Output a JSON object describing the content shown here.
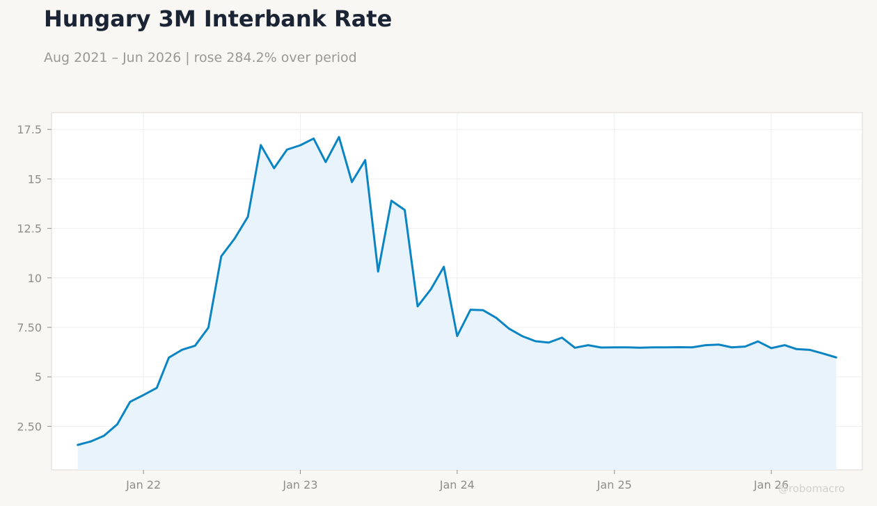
{
  "header": {
    "title": "Hungary 3M Interbank Rate",
    "subtitle": "Aug 2021 – Jun 2026 | rose 284.2% over period"
  },
  "watermark": "@robomacro",
  "colors": {
    "line": "#0a84c2",
    "fill": "#e8f3fb",
    "grid": "#eeeeee",
    "plot_border": "#dddad4",
    "background": "#f8f7f4"
  },
  "chart_data": {
    "type": "area",
    "title": "Hungary 3M Interbank Rate",
    "subtitle": "Aug 2021 – Jun 2026 | rose 284.2% over period",
    "xlabel": "",
    "ylabel": "",
    "grid": true,
    "x_ticks": [
      {
        "date": "2022-01-01",
        "label": "Jan 22"
      },
      {
        "date": "2023-01-01",
        "label": "Jan 23"
      },
      {
        "date": "2024-01-01",
        "label": "Jan 24"
      },
      {
        "date": "2025-01-01",
        "label": "Jan 25"
      },
      {
        "date": "2026-01-01",
        "label": "Jan 26"
      }
    ],
    "y_ticks": [
      {
        "value": 2.5,
        "label": "2.50"
      },
      {
        "value": 5,
        "label": "5"
      },
      {
        "value": 7.5,
        "label": "7.50"
      },
      {
        "value": 10,
        "label": "10"
      },
      {
        "value": 12.5,
        "label": "12.5"
      },
      {
        "value": 15,
        "label": "15"
      },
      {
        "value": 17.5,
        "label": "17.5"
      }
    ],
    "xlim": [
      "2021-06-01",
      "2026-08-01"
    ],
    "ylim": [
      0.3,
      18.35
    ],
    "series": [
      {
        "x": [
          "2021-08-01",
          "2021-09-01",
          "2021-10-01",
          "2021-11-01",
          "2021-12-01",
          "2022-01-01",
          "2022-02-01",
          "2022-03-01",
          "2022-04-01",
          "2022-05-01",
          "2022-06-01",
          "2022-07-01",
          "2022-08-01",
          "2022-09-01",
          "2022-10-01",
          "2022-11-01",
          "2022-12-01",
          "2023-01-01",
          "2023-02-01",
          "2023-03-01",
          "2023-04-01",
          "2023-05-01",
          "2023-06-01",
          "2023-07-01",
          "2023-08-01",
          "2023-09-01",
          "2023-10-01",
          "2023-11-01",
          "2023-12-01",
          "2024-01-01",
          "2024-02-01",
          "2024-03-01",
          "2024-04-01",
          "2024-05-01",
          "2024-06-01",
          "2024-07-01",
          "2024-08-01",
          "2024-09-01",
          "2024-10-01",
          "2024-11-01",
          "2024-12-01",
          "2025-01-01",
          "2025-02-01",
          "2025-03-01",
          "2025-04-01",
          "2025-05-01",
          "2025-06-01",
          "2025-07-01",
          "2025-08-01",
          "2025-09-01",
          "2025-10-01",
          "2025-11-01",
          "2025-12-01",
          "2026-01-01",
          "2026-02-01",
          "2026-03-01",
          "2026-04-01",
          "2026-05-01",
          "2026-06-01"
        ],
        "y": [
          1.56,
          1.74,
          2.02,
          2.6,
          3.74,
          4.08,
          4.44,
          5.97,
          6.37,
          6.57,
          7.48,
          11.09,
          11.98,
          13.09,
          16.71,
          15.54,
          16.48,
          16.7,
          17.04,
          15.85,
          17.12,
          14.84,
          15.95,
          10.32,
          13.9,
          13.43,
          8.56,
          9.43,
          10.56,
          7.06,
          8.39,
          8.37,
          7.98,
          7.43,
          7.05,
          6.8,
          6.73,
          6.98,
          6.47,
          6.6,
          6.48,
          6.49,
          6.49,
          6.47,
          6.49,
          6.49,
          6.5,
          6.49,
          6.6,
          6.63,
          6.49,
          6.53,
          6.79,
          6.45,
          6.6,
          6.4,
          6.36,
          6.18,
          5.98
        ]
      }
    ]
  }
}
